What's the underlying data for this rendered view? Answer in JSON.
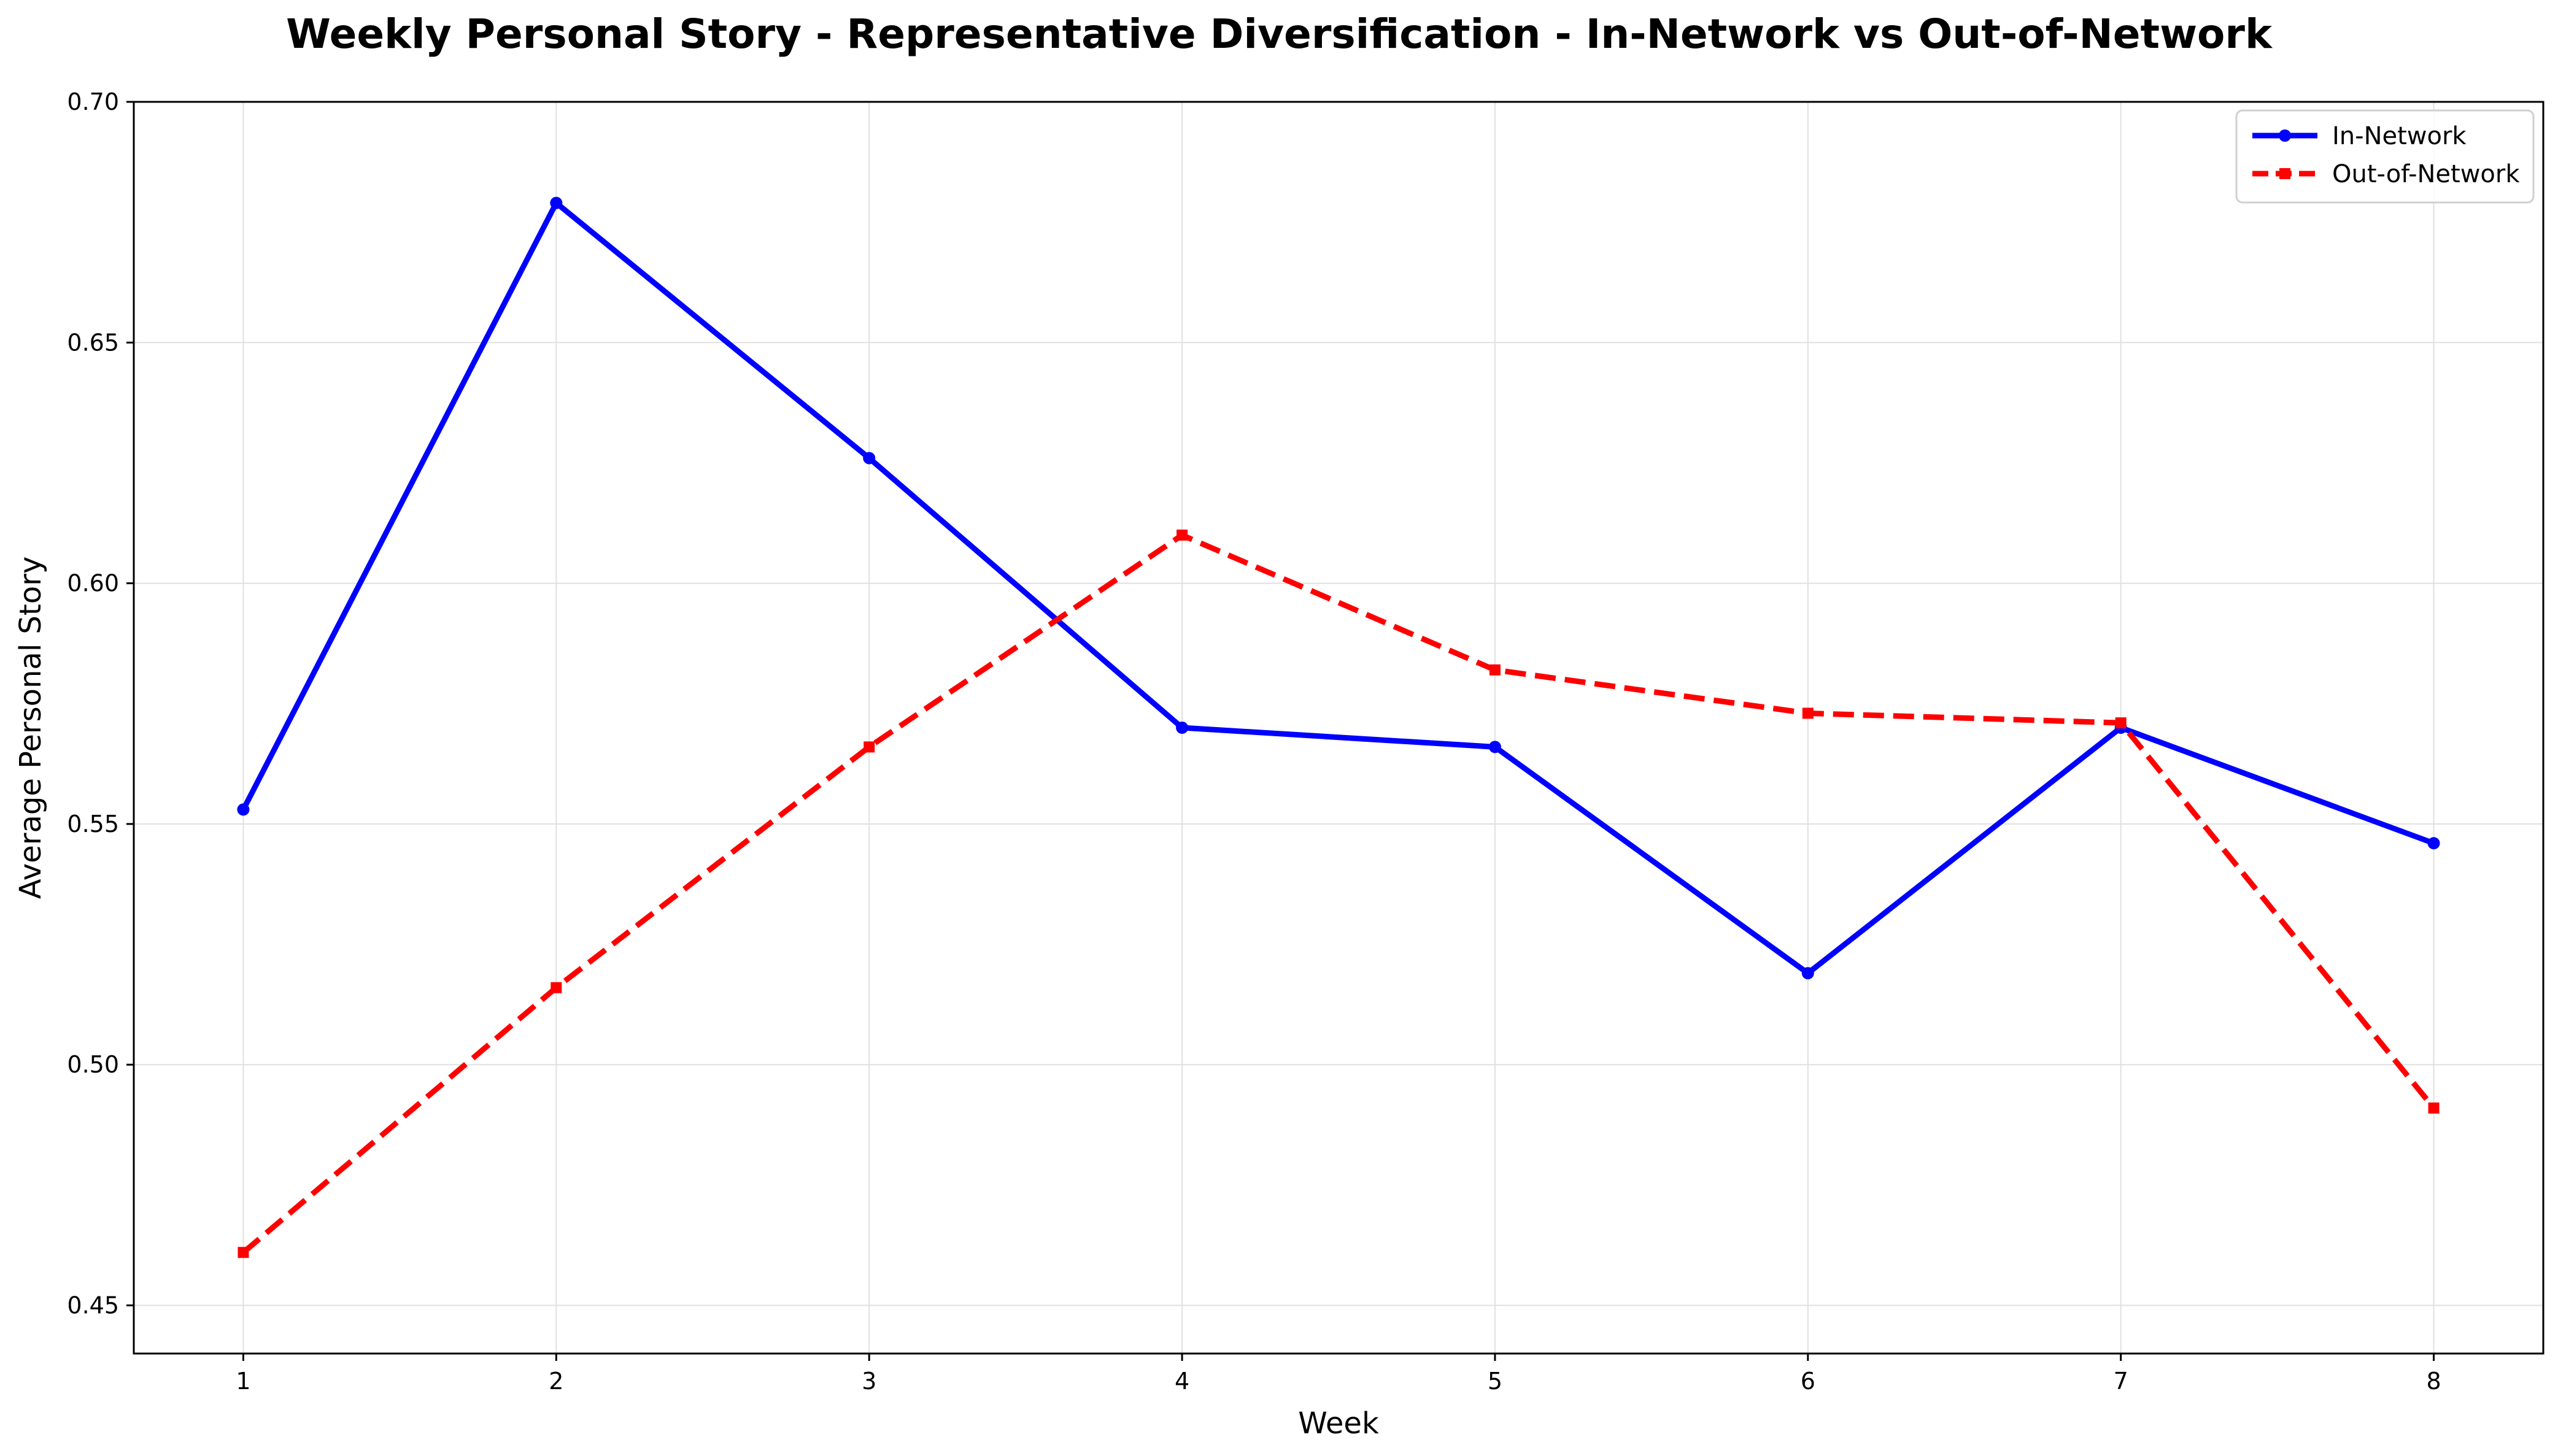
{
  "chart_data": {
    "type": "line",
    "title": "Weekly Personal Story - Representative Diversification - In-Network vs Out-of-Network",
    "xlabel": "Week",
    "ylabel": "Average Personal Story",
    "x": [
      1,
      2,
      3,
      4,
      5,
      6,
      7,
      8
    ],
    "x_tick_labels": [
      "1",
      "2",
      "3",
      "4",
      "5",
      "6",
      "7",
      "8"
    ],
    "xlim": [
      0.65,
      8.35
    ],
    "ylim": [
      0.44,
      0.7
    ],
    "y_ticks": [
      0.45,
      0.5,
      0.55,
      0.6,
      0.65,
      0.7
    ],
    "y_tick_labels": [
      "0.45",
      "0.50",
      "0.55",
      "0.60",
      "0.65",
      "0.70"
    ],
    "grid": true,
    "legend_position": "top-right",
    "series": [
      {
        "name": "In-Network",
        "values": [
          0.553,
          0.679,
          0.626,
          0.57,
          0.566,
          0.519,
          0.57,
          0.546
        ],
        "color": "#0000ff",
        "line_style": "solid",
        "marker": "circle"
      },
      {
        "name": "Out-of-Network",
        "values": [
          0.461,
          0.516,
          0.566,
          0.61,
          0.582,
          0.573,
          0.571,
          0.491
        ],
        "color": "#ff0000",
        "line_style": "dashed",
        "marker": "square"
      }
    ]
  }
}
